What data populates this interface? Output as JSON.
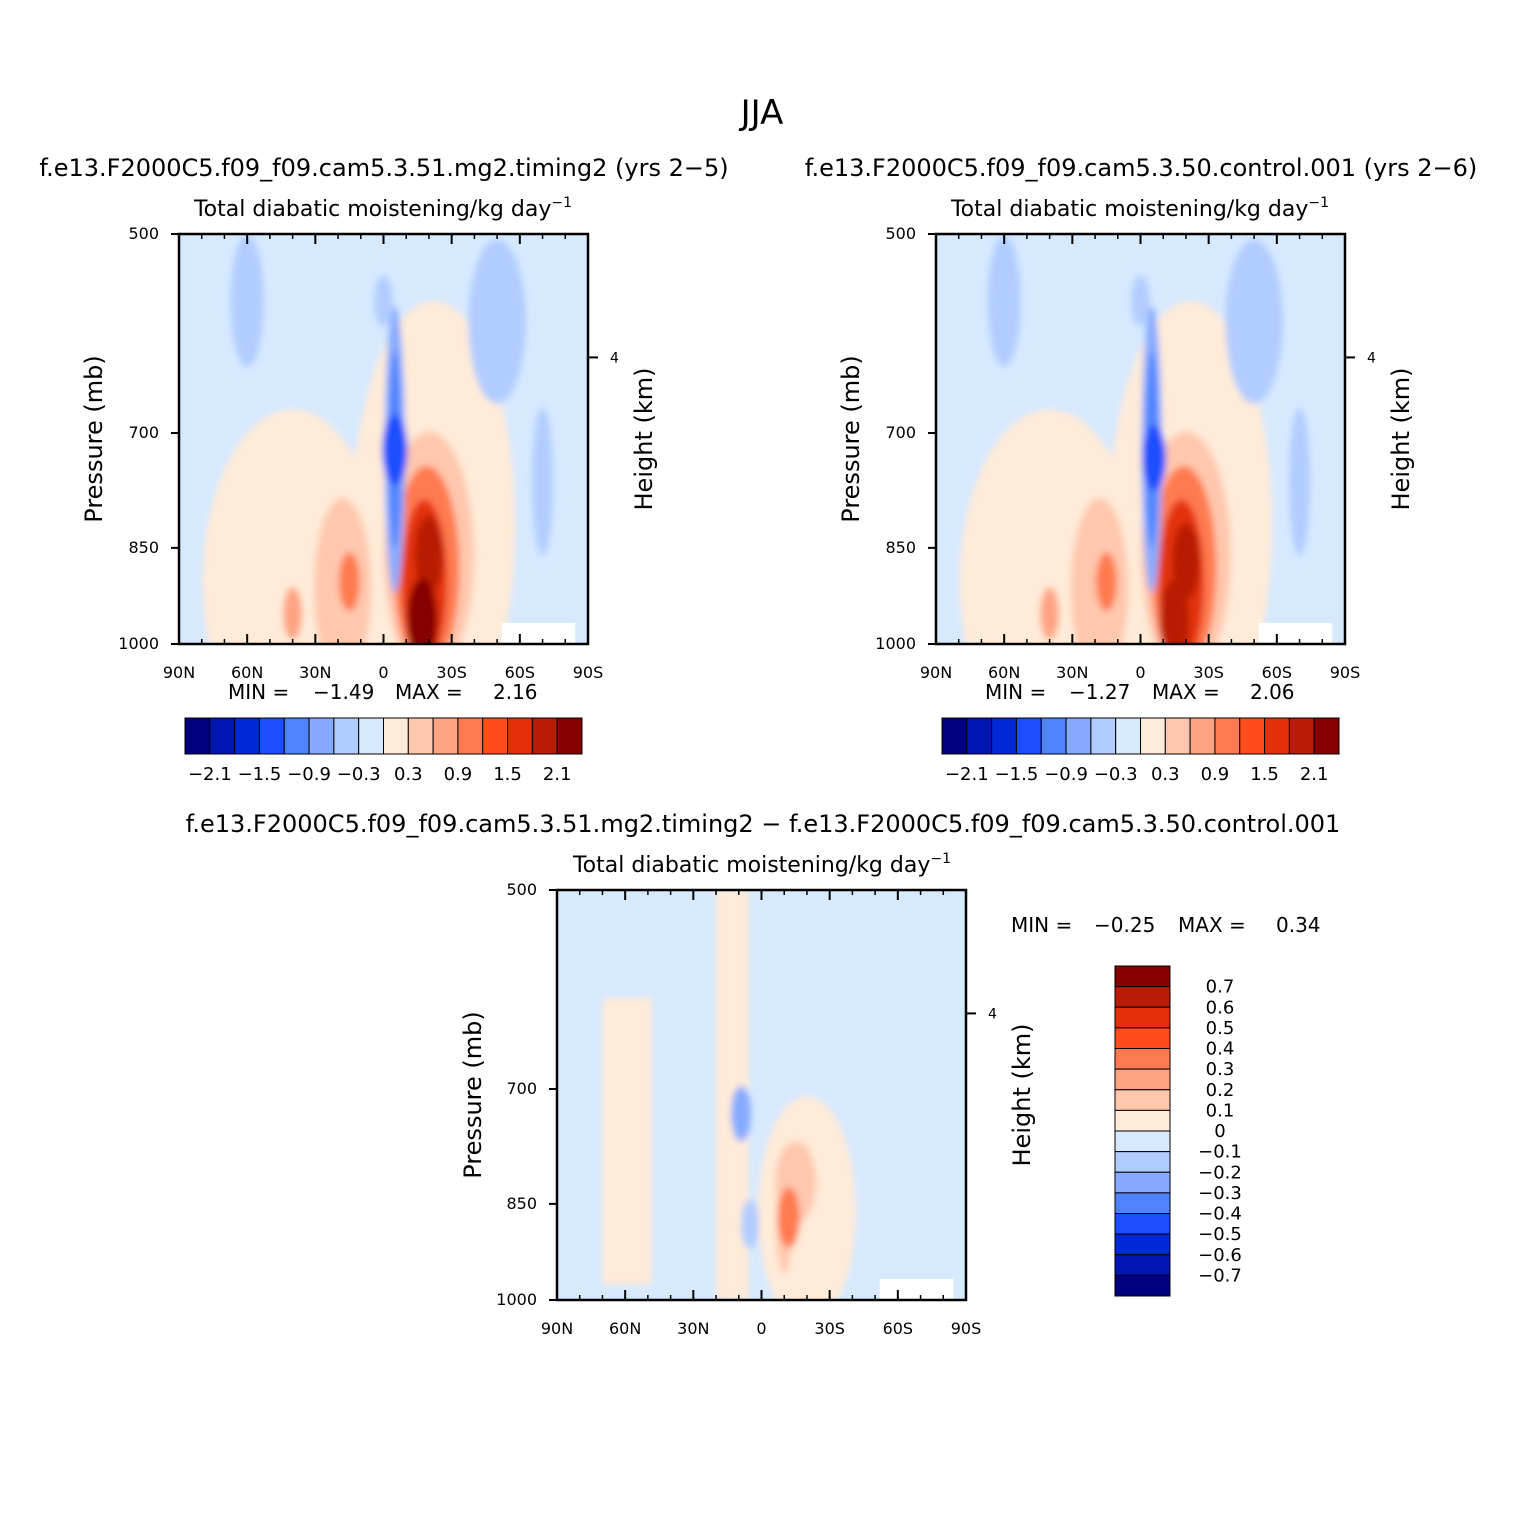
{
  "figure": {
    "title": "JJA"
  },
  "colors": {
    "full_scale": [
      "#00007f",
      "#0016b4",
      "#0028d6",
      "#1c4fff",
      "#4e82ff",
      "#86aaff",
      "#b1ccff",
      "#d6e9ff",
      "#ffebd8",
      "#ffc7ad",
      "#ffa383",
      "#ff7a50",
      "#ff4d1c",
      "#e3300b",
      "#b81c06",
      "#860000"
    ],
    "diff_scale": [
      "#00007f",
      "#0016b4",
      "#0028d6",
      "#1c4fff",
      "#4e82ff",
      "#86aaff",
      "#b1ccff",
      "#d6e9ff",
      "#ffebd8",
      "#ffc7ad",
      "#ffa383",
      "#ff7a50",
      "#ff4d1c",
      "#e3300b",
      "#b81c06",
      "#860000"
    ]
  },
  "chart_data": [
    {
      "type": "heatmap",
      "panel": "case",
      "case_label": "f.e13.F2000C5.f09_f09.cam5.3.51.mg2.timing2 (yrs 2−5)",
      "title": "Total diabatic moistening/kg day",
      "title_sup": "−1",
      "ylabel": "Pressure (mb)",
      "y2label": "Height (km)",
      "x_ticks": [
        "90N",
        "60N",
        "30N",
        "0",
        "30S",
        "60S",
        "90S"
      ],
      "y_ticks": [
        "500",
        "700",
        "850",
        "1000"
      ],
      "y2_ticks": [
        "4"
      ],
      "xlim": [
        90,
        -90
      ],
      "ylim": [
        1000,
        500
      ],
      "stats": {
        "min_label": "MIN =",
        "min": "−1.49",
        "max_label": "MAX =",
        "max": "2.16"
      },
      "levels": [
        -2.1,
        -1.8,
        -1.5,
        -1.2,
        -0.9,
        -0.6,
        -0.3,
        0,
        0.3,
        0.6,
        0.9,
        1.2,
        1.5,
        1.8,
        2.1
      ],
      "colorbar_labels": [
        "−2.1",
        "−1.5",
        "−0.9",
        "−0.3",
        "0.3",
        "0.9",
        "1.5",
        "2.1"
      ],
      "features": [
        {
          "lat": -20,
          "p": 860,
          "value": 1.9
        },
        {
          "lat": -17,
          "p": 960,
          "value": 2.16
        },
        {
          "lat": -5,
          "p": 720,
          "value": -1.49
        },
        {
          "lat": 0,
          "p": 560,
          "value": -0.5
        },
        {
          "lat": 15,
          "p": 900,
          "value": 0.9
        },
        {
          "lat": 40,
          "p": 950,
          "value": 0.6
        },
        {
          "lat": 60,
          "p": 560,
          "value": -0.45
        },
        {
          "lat": -50,
          "p": 560,
          "value": -0.5
        }
      ]
    },
    {
      "type": "heatmap",
      "panel": "control",
      "case_label": "f.e13.F2000C5.f09_f09.cam5.3.50.control.001 (yrs 2−6)",
      "title": "Total diabatic moistening/kg day",
      "title_sup": "−1",
      "ylabel": "Pressure (mb)",
      "y2label": "Height (km)",
      "x_ticks": [
        "90N",
        "60N",
        "30N",
        "0",
        "30S",
        "60S",
        "90S"
      ],
      "y_ticks": [
        "500",
        "700",
        "850",
        "1000"
      ],
      "y2_ticks": [
        "4"
      ],
      "xlim": [
        90,
        -90
      ],
      "ylim": [
        1000,
        500
      ],
      "stats": {
        "min_label": "MIN =",
        "min": "−1.27",
        "max_label": "MAX =",
        "max": "2.06"
      },
      "levels": [
        -2.1,
        -1.8,
        -1.5,
        -1.2,
        -0.9,
        -0.6,
        -0.3,
        0,
        0.3,
        0.6,
        0.9,
        1.2,
        1.5,
        1.8,
        2.1
      ],
      "colorbar_labels": [
        "−2.1",
        "−1.5",
        "−0.9",
        "−0.3",
        "0.3",
        "0.9",
        "1.5",
        "2.1"
      ],
      "features": [
        {
          "lat": -20,
          "p": 870,
          "value": 1.8
        },
        {
          "lat": -15,
          "p": 960,
          "value": 2.06
        },
        {
          "lat": -6,
          "p": 730,
          "value": -1.27
        },
        {
          "lat": 0,
          "p": 560,
          "value": -0.5
        },
        {
          "lat": 15,
          "p": 900,
          "value": 0.9
        },
        {
          "lat": 40,
          "p": 950,
          "value": 0.6
        },
        {
          "lat": 60,
          "p": 560,
          "value": -0.45
        },
        {
          "lat": -50,
          "p": 560,
          "value": -0.5
        }
      ]
    },
    {
      "type": "heatmap",
      "panel": "difference",
      "case_label": "f.e13.F2000C5.f09_f09.cam5.3.51.mg2.timing2 − f.e13.F2000C5.f09_f09.cam5.3.50.control.001",
      "title": "Total diabatic moistening/kg day",
      "title_sup": "−1",
      "ylabel": "Pressure (mb)",
      "y2label": "Height (km)",
      "x_ticks": [
        "90N",
        "60N",
        "30N",
        "0",
        "30S",
        "60S",
        "90S"
      ],
      "y_ticks": [
        "500",
        "700",
        "850",
        "1000"
      ],
      "y2_ticks": [
        "4"
      ],
      "xlim": [
        90,
        -90
      ],
      "ylim": [
        1000,
        500
      ],
      "stats": {
        "min_label": "MIN =",
        "min": "−0.25",
        "max_label": "MAX =",
        "max": "0.34"
      },
      "levels": [
        -0.7,
        -0.6,
        -0.5,
        -0.4,
        -0.3,
        -0.2,
        -0.1,
        0,
        0.1,
        0.2,
        0.3,
        0.4,
        0.5,
        0.6,
        0.7
      ],
      "colorbar_labels": [
        "−0.7",
        "−0.6",
        "−0.5",
        "−0.4",
        "−0.3",
        "−0.2",
        "−0.1",
        "0",
        "0.1",
        "0.2",
        "0.3",
        "0.4",
        "0.5",
        "0.6",
        "0.7"
      ],
      "features": [
        {
          "lat": -12,
          "p": 870,
          "value": 0.34
        },
        {
          "lat": -18,
          "p": 800,
          "value": 0.15
        },
        {
          "lat": 9,
          "p": 730,
          "value": -0.25
        },
        {
          "lat": 5,
          "p": 880,
          "value": -0.15
        }
      ]
    }
  ]
}
